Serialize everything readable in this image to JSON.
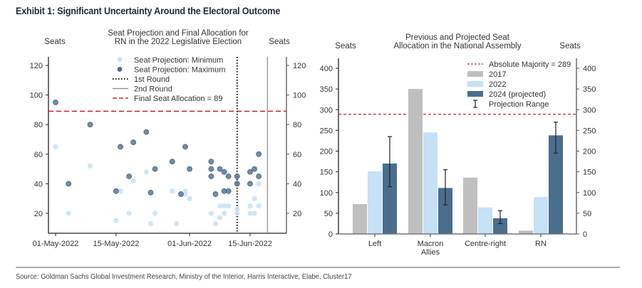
{
  "exhibit_title": "Exhibit 1: Significant Uncertainty Around the Electoral Outcome",
  "source": "Source: Goldman Sachs Global Investment Research, Ministry of the Interior, Harris Interactive, Elabe, Cluster17",
  "colors": {
    "min": "#c6e0f5",
    "max": "#4a6e8e",
    "y2017": "#bfbfbf",
    "y2022": "#c6e0f5",
    "y2024": "#4a6e8e",
    "majority": "#d62728",
    "final": "#d62728"
  },
  "chart_data": [
    {
      "type": "scatter",
      "title": "Seat Projection and Final Allocation for RN in the 2022 Legislative Election",
      "title_lines": [
        "Seat Projection and Final Allocation for",
        "RN in the 2022 Legislative Election"
      ],
      "ylabel_left": "Seats",
      "ylabel_right": "Seats",
      "ylim": [
        5,
        130
      ],
      "yticks": [
        20,
        40,
        60,
        80,
        100,
        120
      ],
      "xlim": [
        "2022-04-30",
        "2022-06-22"
      ],
      "xticks": [
        {
          "date": "2022-05-01",
          "label": "01-May-2022"
        },
        {
          "date": "2022-05-15",
          "label": "15-May-2022"
        },
        {
          "date": "2022-06-01",
          "label": "01-Jun-2022"
        },
        {
          "date": "2022-06-15",
          "label": "15-Jun-2022"
        }
      ],
      "legend": {
        "placement": "top-center",
        "entries": [
          {
            "label": "Seat Projection: Minimum",
            "kind": "min"
          },
          {
            "label": "Seat Projection: Maximum",
            "kind": "max"
          },
          {
            "label": "1st Round",
            "kind": "dotted"
          },
          {
            "label": "2nd Round",
            "kind": "solid"
          },
          {
            "label": "Final Seat Allocation = 89",
            "kind": "dashed"
          }
        ]
      },
      "first_round": "2022-06-12",
      "second_round": "2022-06-19",
      "final_allocation": 89,
      "series": [
        {
          "name": "Seat Projection: Minimum",
          "points": [
            [
              "2022-05-01",
              65
            ],
            [
              "2022-05-04",
              20
            ],
            [
              "2022-05-09",
              52
            ],
            [
              "2022-05-15",
              15
            ],
            [
              "2022-05-16",
              35
            ],
            [
              "2022-05-18",
              20
            ],
            [
              "2022-05-19",
              42
            ],
            [
              "2022-05-22",
              48
            ],
            [
              "2022-05-23",
              13
            ],
            [
              "2022-05-24",
              20
            ],
            [
              "2022-05-28",
              35
            ],
            [
              "2022-05-29",
              13
            ],
            [
              "2022-05-31",
              35
            ],
            [
              "2022-05-31",
              33
            ],
            [
              "2022-06-01",
              30
            ],
            [
              "2022-06-06",
              20
            ],
            [
              "2022-06-07",
              13
            ],
            [
              "2022-06-08",
              25
            ],
            [
              "2022-06-08",
              17
            ],
            [
              "2022-06-09",
              25
            ],
            [
              "2022-06-09",
              20
            ],
            [
              "2022-06-10",
              25
            ],
            [
              "2022-06-12",
              23
            ],
            [
              "2022-06-12",
              20
            ],
            [
              "2022-06-15",
              25
            ],
            [
              "2022-06-15",
              20
            ],
            [
              "2022-06-16",
              20
            ],
            [
              "2022-06-16",
              30
            ],
            [
              "2022-06-17",
              25
            ],
            [
              "2022-06-17",
              40
            ]
          ]
        },
        {
          "name": "Seat Projection: Maximum",
          "points": [
            [
              "2022-05-01",
              95
            ],
            [
              "2022-05-04",
              40
            ],
            [
              "2022-05-09",
              80
            ],
            [
              "2022-05-15",
              35
            ],
            [
              "2022-05-16",
              65
            ],
            [
              "2022-05-18",
              45
            ],
            [
              "2022-05-19",
              68
            ],
            [
              "2022-05-22",
              75
            ],
            [
              "2022-05-23",
              34
            ],
            [
              "2022-05-24",
              50
            ],
            [
              "2022-05-28",
              55
            ],
            [
              "2022-05-30",
              33
            ],
            [
              "2022-05-31",
              65
            ],
            [
              "2022-06-01",
              50
            ],
            [
              "2022-06-06",
              55
            ],
            [
              "2022-06-06",
              50
            ],
            [
              "2022-06-06",
              45
            ],
            [
              "2022-06-07",
              33
            ],
            [
              "2022-06-08",
              50
            ],
            [
              "2022-06-09",
              48
            ],
            [
              "2022-06-09",
              35
            ],
            [
              "2022-06-10",
              35
            ],
            [
              "2022-06-10",
              45
            ],
            [
              "2022-06-12",
              45
            ],
            [
              "2022-06-12",
              40
            ],
            [
              "2022-06-15",
              48
            ],
            [
              "2022-06-15",
              40
            ],
            [
              "2022-06-16",
              50
            ],
            [
              "2022-06-17",
              60
            ],
            [
              "2022-06-17",
              45
            ]
          ]
        }
      ]
    },
    {
      "type": "bar",
      "title": "Previous and Projected Seat Allocation in the National Assembly",
      "title_lines": [
        "Previous and Projected Seat",
        "Allocation in the National Assembly"
      ],
      "ylabel_left": "Seats",
      "ylabel_right": "Seats",
      "ylim": [
        0,
        420
      ],
      "yticks": [
        0,
        50,
        100,
        150,
        200,
        250,
        300,
        350,
        400
      ],
      "categories": [
        "Left",
        "Macron Allies",
        "Centre-right",
        "RN"
      ],
      "category_lines": [
        [
          "Left"
        ],
        [
          "Macron",
          "Allies"
        ],
        [
          "Centre-right"
        ],
        [
          "RN"
        ]
      ],
      "series": [
        {
          "name": "2017",
          "key": "y2017",
          "values": [
            72,
            350,
            136,
            8
          ]
        },
        {
          "name": "2022",
          "key": "y2022",
          "values": [
            151,
            245,
            64,
            89
          ]
        },
        {
          "name": "2024 (projected)",
          "key": "y2024",
          "values": [
            170,
            111,
            38,
            238
          ]
        }
      ],
      "projection_range": [
        [
          114,
          235
        ],
        [
          70,
          155
        ],
        [
          25,
          56
        ],
        [
          195,
          270
        ]
      ],
      "absolute_majority": 289,
      "legend": {
        "placement": "top-right",
        "entries": [
          {
            "label": "Absolute Majority = 289",
            "kind": "dashed"
          },
          {
            "label": "2017",
            "kind": "y2017"
          },
          {
            "label": "2022",
            "kind": "y2022"
          },
          {
            "label": "2024 (projected)",
            "kind": "y2024"
          },
          {
            "label": "Projection Range",
            "kind": "errorbar"
          }
        ]
      }
    }
  ]
}
